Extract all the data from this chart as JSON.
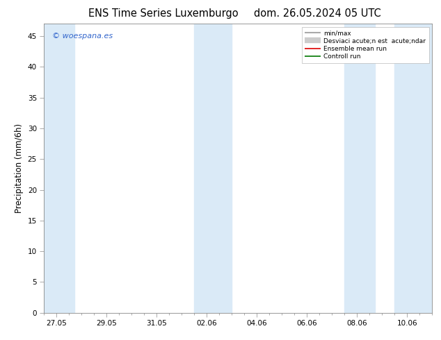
{
  "title_left": "ENS Time Series Luxemburgo",
  "title_right": "dom. 26.05.2024 05 UTC",
  "ylabel": "Precipitation (mm/6h)",
  "ylim": [
    0,
    47
  ],
  "yticks": [
    0,
    5,
    10,
    15,
    20,
    25,
    30,
    35,
    40,
    45
  ],
  "xtick_labels": [
    "27.05",
    "29.05",
    "31.05",
    "02.06",
    "04.06",
    "06.06",
    "08.06",
    "10.06"
  ],
  "xmin": 0,
  "xmax": 15.5,
  "xtick_positions": [
    0.5,
    2.5,
    4.5,
    6.5,
    8.5,
    10.5,
    12.5,
    14.5
  ],
  "watermark": "© woespana.es",
  "legend_entries": [
    {
      "label": "min/max",
      "color": "#bbbbbb",
      "lw": 2.5
    },
    {
      "label": "Desviaci acute;n est  acute;ndar",
      "color": "#bbbbbb",
      "lw": 6
    },
    {
      "label": "Ensemble mean run",
      "color": "#dd0000",
      "lw": 1.2
    },
    {
      "label": "Controll run",
      "color": "#007700",
      "lw": 1.2
    }
  ],
  "shaded_bands": [
    [
      -0.2,
      1.2
    ],
    [
      6.0,
      7.5
    ],
    [
      12.0,
      13.2
    ],
    [
      14.0,
      15.7
    ]
  ],
  "band_color": "#daeaf7",
  "bg_color": "#ffffff",
  "title_fontsize": 10.5,
  "tick_fontsize": 7.5,
  "ylabel_fontsize": 8.5
}
